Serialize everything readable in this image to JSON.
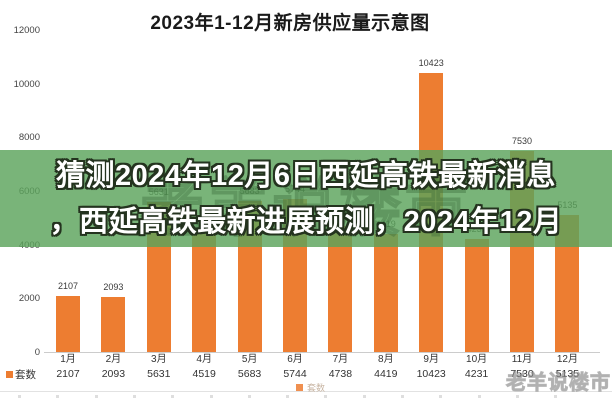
{
  "chart": {
    "title": "2023年1-12月新房供应量示意图",
    "legend_label": "套数",
    "row_header": "套数"
  },
  "chart_data": {
    "type": "bar",
    "title": "2023年1-12月新房供应量示意图",
    "categories": [
      "1月",
      "2月",
      "3月",
      "4月",
      "5月",
      "6月",
      "7月",
      "8月",
      "9月",
      "10月",
      "11月",
      "12月"
    ],
    "series": [
      {
        "name": "套数",
        "values": [
          2107,
          2093,
          5631,
          4519,
          5683,
          5744,
          4738,
          4419,
          10423,
          4231,
          7530,
          5135
        ]
      }
    ],
    "yticks": [
      12000,
      10000,
      8000,
      6000,
      4000,
      2000,
      0
    ],
    "ylim": [
      0,
      12000
    ],
    "xlabel": "",
    "ylabel": "",
    "grid": false,
    "legend_position": "bottom",
    "bar_color": "#ed7d31",
    "data_labels": true
  },
  "overlay": {
    "line1": "猜测2024年12月6日西延高铁最新消息",
    "line2": "，西延高铁最新进展预测，2024年12月",
    "background_color": "#5ca45c",
    "text_color": "#ffffff",
    "ghost_watermark": "老羊说楼市"
  },
  "watermark": {
    "text": "老羊说楼市"
  }
}
